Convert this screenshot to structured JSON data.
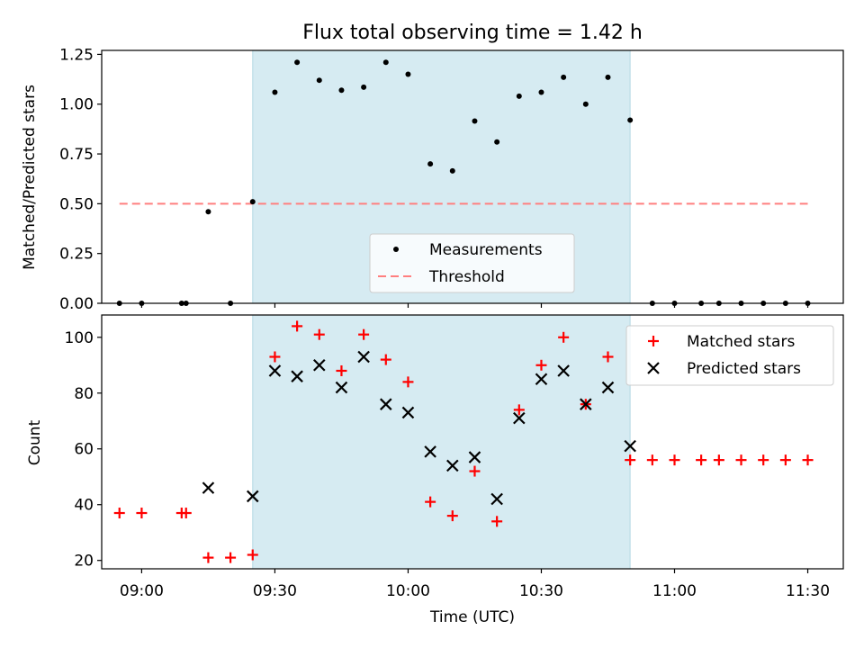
{
  "figure": {
    "title": "Flux total observing time = 1.42 h",
    "xlabel": "Time (UTC)",
    "shaded_band": {
      "start": "09:25",
      "end": "10:50",
      "color": "#add8e6"
    }
  },
  "colors": {
    "measurement": "#000000",
    "threshold": "#ff7f7f",
    "matched": "#ff0000",
    "predicted": "#000000"
  },
  "chart_data": [
    {
      "type": "scatter",
      "ylabel": "Matched/Predicted stars",
      "xlim": [
        "08:51",
        "11:38"
      ],
      "ylim": [
        0,
        1.27
      ],
      "yticks": [
        "0.00",
        "0.25",
        "0.50",
        "0.75",
        "1.00",
        "1.25"
      ],
      "legend": {
        "position": "lower-center",
        "entries": [
          "Measurements",
          "Threshold"
        ]
      },
      "threshold": {
        "value": 0.5,
        "x_start": "08:55",
        "x_end": "11:30"
      },
      "x": [
        "08:55",
        "09:00",
        "09:09",
        "09:10",
        "09:15",
        "09:20",
        "09:25",
        "09:30",
        "09:35",
        "09:40",
        "09:45",
        "09:50",
        "09:55",
        "10:00",
        "10:05",
        "10:10",
        "10:15",
        "10:20",
        "10:25",
        "10:30",
        "10:35",
        "10:40",
        "10:45",
        "10:50",
        "10:55",
        "11:00",
        "11:06",
        "11:10",
        "11:15",
        "11:20",
        "11:25",
        "11:30"
      ],
      "series": [
        {
          "name": "Measurements",
          "values": [
            0,
            0,
            0,
            0,
            0.46,
            0,
            0.51,
            1.06,
            1.21,
            1.12,
            1.07,
            1.085,
            1.21,
            1.15,
            0.7,
            0.665,
            0.915,
            0.81,
            1.04,
            1.06,
            1.135,
            1.0,
            1.135,
            0.92,
            0,
            0,
            0,
            0,
            0,
            0,
            0,
            0
          ]
        }
      ]
    },
    {
      "type": "scatter",
      "ylabel": "Count",
      "xlim": [
        "08:51",
        "11:38"
      ],
      "ylim": [
        17,
        108
      ],
      "yticks": [
        "20",
        "40",
        "60",
        "80",
        "100"
      ],
      "xticks": [
        "09:00",
        "09:30",
        "10:00",
        "10:30",
        "11:00",
        "11:30"
      ],
      "legend": {
        "position": "top-right",
        "entries": [
          "Matched stars",
          "Predicted stars"
        ]
      },
      "series": [
        {
          "name": "Matched stars",
          "x": [
            "08:55",
            "09:00",
            "09:09",
            "09:10",
            "09:15",
            "09:20",
            "09:25",
            "09:30",
            "09:35",
            "09:40",
            "09:45",
            "09:50",
            "09:55",
            "10:00",
            "10:05",
            "10:10",
            "10:15",
            "10:20",
            "10:25",
            "10:30",
            "10:35",
            "10:40",
            "10:45",
            "10:50",
            "10:55",
            "11:00",
            "11:06",
            "11:10",
            "11:15",
            "11:20",
            "11:25",
            "11:30"
          ],
          "values": [
            37,
            37,
            37,
            37,
            21,
            21,
            22,
            93,
            104,
            101,
            88,
            101,
            92,
            84,
            41,
            36,
            52,
            34,
            74,
            90,
            100,
            76,
            93,
            56,
            56,
            56,
            56,
            56,
            56,
            56,
            56,
            56
          ]
        },
        {
          "name": "Predicted stars",
          "x": [
            "09:15",
            "09:25",
            "09:30",
            "09:35",
            "09:40",
            "09:45",
            "09:50",
            "09:55",
            "10:00",
            "10:05",
            "10:10",
            "10:15",
            "10:20",
            "10:25",
            "10:30",
            "10:35",
            "10:40",
            "10:45",
            "10:50"
          ],
          "values": [
            46,
            43,
            88,
            86,
            90,
            82,
            93,
            76,
            73,
            59,
            54,
            57,
            42,
            71,
            85,
            88,
            76,
            82,
            61
          ]
        }
      ]
    }
  ]
}
